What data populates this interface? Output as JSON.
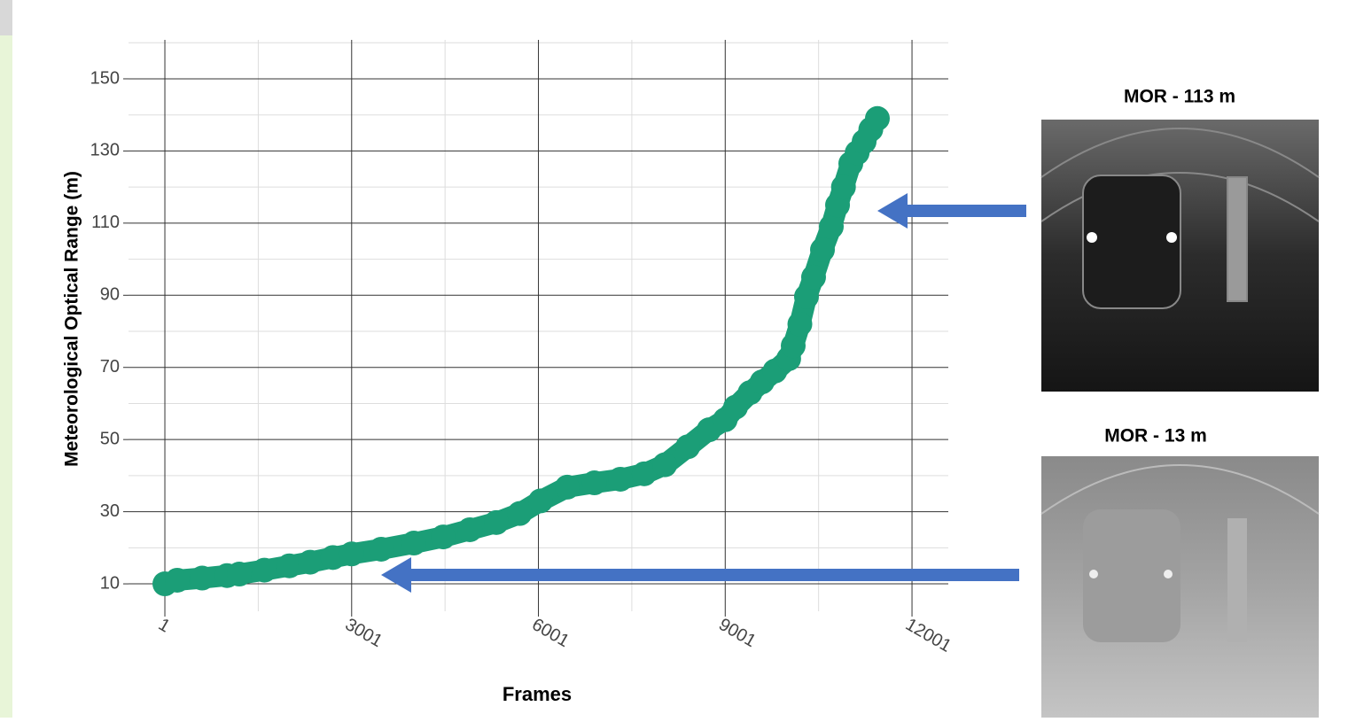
{
  "chart_data": {
    "type": "line",
    "x_label": "Frames",
    "y_label": "Meteorological Optical Range (m)",
    "x": [
      1,
      200,
      600,
      1000,
      1196,
      1600,
      2000,
      2335,
      2700,
      3001,
      3475,
      4000,
      4472,
      4900,
      5325,
      5700,
      6036,
      6463,
      6900,
      7318,
      7700,
      8030,
      8400,
      8741,
      9001,
      9168,
      9400,
      9594,
      9800,
      10020,
      10093,
      10200,
      10306,
      10420,
      10563,
      10705,
      10805,
      10900,
      11018,
      11120,
      11232,
      11340,
      11445
    ],
    "values": [
      10,
      11,
      11.6,
      12.3,
      12.7,
      13.8,
      15,
      16,
      17.3,
      18.3,
      19.6,
      21.3,
      23,
      25,
      27,
      29.5,
      33,
      36.8,
      38,
      39,
      40.5,
      43,
      48,
      52.7,
      55.5,
      59,
      63,
      66,
      69,
      72.4,
      76,
      82,
      89.6,
      95,
      102.6,
      109,
      115,
      120,
      126.5,
      129.5,
      132.6,
      136,
      139
    ],
    "color": "#1b9e77",
    "xlim": [
      -583,
      12584
    ],
    "ylim": [
      2.4,
      160.8
    ],
    "xticks": [
      1,
      3001,
      6001,
      9001,
      12001
    ],
    "yticks": [
      10,
      30,
      50,
      70,
      90,
      110,
      130,
      150
    ],
    "grid": true,
    "annotations": [
      "MOR - 113 m",
      "MOR - 13 m"
    ]
  }
}
